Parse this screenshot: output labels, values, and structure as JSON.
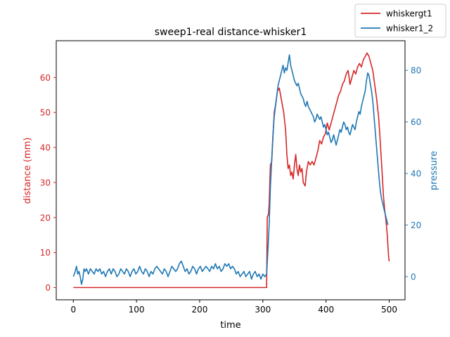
{
  "chart_data": {
    "type": "line",
    "title": "sweep1-real distance-whisker1",
    "xlabel": "time",
    "ylabel_left": "distance (mm)",
    "ylabel_right": "pressure",
    "xlim": [
      -27,
      525
    ],
    "ylim_left": [
      -3.5,
      70.5
    ],
    "ylim_right": [
      -9,
      91.5
    ],
    "xticks": [
      0,
      100,
      200,
      300,
      400,
      500
    ],
    "yticks_left": [
      0,
      10,
      20,
      30,
      40,
      50,
      60
    ],
    "yticks_right": [
      0,
      20,
      40,
      60,
      80
    ],
    "grid": false,
    "legend_position": "top-right",
    "series": [
      {
        "name": "whiskergt1",
        "axis": "left",
        "color": "#d62728",
        "points": [
          [
            0,
            0
          ],
          [
            100,
            0
          ],
          [
            200,
            0
          ],
          [
            306,
            0
          ],
          [
            306,
            0.5
          ],
          [
            307,
            20
          ],
          [
            309,
            21
          ],
          [
            310,
            24
          ],
          [
            312,
            35
          ],
          [
            314,
            36
          ],
          [
            316,
            43
          ],
          [
            318,
            50
          ],
          [
            320,
            52
          ],
          [
            323,
            56
          ],
          [
            326,
            57
          ],
          [
            330,
            53
          ],
          [
            333,
            50
          ],
          [
            336,
            45
          ],
          [
            338,
            38
          ],
          [
            340,
            34
          ],
          [
            342,
            35
          ],
          [
            344,
            32
          ],
          [
            346,
            33
          ],
          [
            348,
            31
          ],
          [
            350,
            35
          ],
          [
            352,
            38
          ],
          [
            354,
            34
          ],
          [
            356,
            32
          ],
          [
            358,
            35
          ],
          [
            360,
            33
          ],
          [
            362,
            34
          ],
          [
            364,
            30
          ],
          [
            367,
            29
          ],
          [
            369,
            33
          ],
          [
            372,
            36
          ],
          [
            375,
            35
          ],
          [
            378,
            36
          ],
          [
            381,
            35
          ],
          [
            384,
            37
          ],
          [
            387,
            39
          ],
          [
            390,
            42
          ],
          [
            393,
            41
          ],
          [
            396,
            43
          ],
          [
            399,
            44
          ],
          [
            402,
            47
          ],
          [
            405,
            45
          ],
          [
            408,
            47
          ],
          [
            411,
            49
          ],
          [
            414,
            51
          ],
          [
            417,
            53
          ],
          [
            420,
            55
          ],
          [
            423,
            56
          ],
          [
            426,
            58
          ],
          [
            429,
            59
          ],
          [
            432,
            61
          ],
          [
            435,
            62
          ],
          [
            438,
            58
          ],
          [
            441,
            60
          ],
          [
            444,
            62
          ],
          [
            447,
            61
          ],
          [
            450,
            63
          ],
          [
            453,
            64
          ],
          [
            456,
            63
          ],
          [
            459,
            65
          ],
          [
            462,
            66
          ],
          [
            465,
            67
          ],
          [
            468,
            66
          ],
          [
            471,
            64
          ],
          [
            474,
            62
          ],
          [
            477,
            58
          ],
          [
            480,
            54
          ],
          [
            483,
            49
          ],
          [
            485,
            44
          ],
          [
            487,
            38
          ],
          [
            489,
            32
          ],
          [
            491,
            26
          ],
          [
            493,
            22
          ],
          [
            495,
            19
          ],
          [
            497,
            15
          ],
          [
            499,
            9
          ],
          [
            500,
            7.5
          ]
        ]
      },
      {
        "name": "whisker1_2",
        "axis": "right",
        "color": "#1f77b4",
        "points": [
          [
            0,
            0
          ],
          [
            3,
            2
          ],
          [
            5,
            4
          ],
          [
            7,
            1
          ],
          [
            9,
            2
          ],
          [
            11,
            0
          ],
          [
            13,
            -3
          ],
          [
            15,
            -1
          ],
          [
            17,
            3
          ],
          [
            19,
            2
          ],
          [
            21,
            3
          ],
          [
            24,
            1
          ],
          [
            27,
            3
          ],
          [
            30,
            2
          ],
          [
            33,
            1
          ],
          [
            36,
            3
          ],
          [
            39,
            2
          ],
          [
            42,
            3
          ],
          [
            45,
            1
          ],
          [
            48,
            2
          ],
          [
            51,
            0
          ],
          [
            54,
            2
          ],
          [
            57,
            3
          ],
          [
            60,
            1
          ],
          [
            63,
            3
          ],
          [
            66,
            2
          ],
          [
            69,
            0
          ],
          [
            72,
            1
          ],
          [
            75,
            3
          ],
          [
            78,
            2
          ],
          [
            81,
            1
          ],
          [
            84,
            3
          ],
          [
            87,
            2
          ],
          [
            90,
            0
          ],
          [
            93,
            2
          ],
          [
            96,
            3
          ],
          [
            99,
            1
          ],
          [
            102,
            2
          ],
          [
            105,
            4
          ],
          [
            108,
            2
          ],
          [
            111,
            1
          ],
          [
            114,
            3
          ],
          [
            117,
            2
          ],
          [
            120,
            0
          ],
          [
            123,
            2
          ],
          [
            126,
            1
          ],
          [
            129,
            3
          ],
          [
            132,
            4
          ],
          [
            135,
            3
          ],
          [
            138,
            2
          ],
          [
            141,
            1
          ],
          [
            144,
            3
          ],
          [
            147,
            2
          ],
          [
            150,
            0
          ],
          [
            153,
            2
          ],
          [
            156,
            4
          ],
          [
            159,
            3
          ],
          [
            162,
            2
          ],
          [
            165,
            3
          ],
          [
            168,
            5
          ],
          [
            171,
            6
          ],
          [
            174,
            4
          ],
          [
            177,
            2
          ],
          [
            180,
            3
          ],
          [
            183,
            1
          ],
          [
            186,
            2
          ],
          [
            189,
            4
          ],
          [
            192,
            3
          ],
          [
            195,
            1
          ],
          [
            198,
            3
          ],
          [
            201,
            4
          ],
          [
            204,
            2
          ],
          [
            207,
            3
          ],
          [
            210,
            4
          ],
          [
            213,
            3
          ],
          [
            216,
            2
          ],
          [
            219,
            4
          ],
          [
            222,
            3
          ],
          [
            225,
            5
          ],
          [
            228,
            3
          ],
          [
            231,
            4
          ],
          [
            234,
            2
          ],
          [
            237,
            3
          ],
          [
            240,
            5
          ],
          [
            243,
            4
          ],
          [
            246,
            5
          ],
          [
            249,
            3
          ],
          [
            252,
            4
          ],
          [
            255,
            3
          ],
          [
            258,
            1
          ],
          [
            261,
            2
          ],
          [
            264,
            0
          ],
          [
            267,
            1
          ],
          [
            270,
            2
          ],
          [
            273,
            0
          ],
          [
            276,
            1
          ],
          [
            279,
            2
          ],
          [
            282,
            -1
          ],
          [
            285,
            1
          ],
          [
            288,
            2
          ],
          [
            291,
            0
          ],
          [
            294,
            1
          ],
          [
            297,
            -1
          ],
          [
            300,
            1
          ],
          [
            303,
            0
          ],
          [
            306,
            1
          ],
          [
            308,
            10
          ],
          [
            310,
            20
          ],
          [
            312,
            35
          ],
          [
            314,
            45
          ],
          [
            316,
            55
          ],
          [
            318,
            62
          ],
          [
            320,
            66
          ],
          [
            322,
            70
          ],
          [
            324,
            74
          ],
          [
            326,
            76
          ],
          [
            328,
            78
          ],
          [
            330,
            80
          ],
          [
            332,
            82
          ],
          [
            334,
            79
          ],
          [
            336,
            81
          ],
          [
            338,
            80
          ],
          [
            340,
            83
          ],
          [
            342,
            86
          ],
          [
            344,
            82
          ],
          [
            346,
            80
          ],
          [
            348,
            78
          ],
          [
            350,
            76
          ],
          [
            352,
            75
          ],
          [
            354,
            74
          ],
          [
            356,
            75
          ],
          [
            358,
            73
          ],
          [
            360,
            71
          ],
          [
            362,
            70
          ],
          [
            364,
            69
          ],
          [
            366,
            67
          ],
          [
            368,
            66
          ],
          [
            370,
            68
          ],
          [
            372,
            66
          ],
          [
            374,
            65
          ],
          [
            376,
            64
          ],
          [
            378,
            63
          ],
          [
            380,
            62
          ],
          [
            382,
            60
          ],
          [
            384,
            61
          ],
          [
            386,
            63
          ],
          [
            388,
            62
          ],
          [
            390,
            61
          ],
          [
            392,
            62
          ],
          [
            394,
            60
          ],
          [
            396,
            58
          ],
          [
            398,
            59
          ],
          [
            400,
            57
          ],
          [
            402,
            55
          ],
          [
            404,
            56
          ],
          [
            406,
            54
          ],
          [
            408,
            52
          ],
          [
            410,
            53
          ],
          [
            412,
            55
          ],
          [
            414,
            53
          ],
          [
            416,
            51
          ],
          [
            418,
            53
          ],
          [
            420,
            55
          ],
          [
            422,
            57
          ],
          [
            424,
            56
          ],
          [
            426,
            58
          ],
          [
            428,
            60
          ],
          [
            430,
            59
          ],
          [
            432,
            57
          ],
          [
            434,
            58
          ],
          [
            436,
            56
          ],
          [
            438,
            55
          ],
          [
            440,
            57
          ],
          [
            442,
            59
          ],
          [
            444,
            58
          ],
          [
            446,
            57
          ],
          [
            448,
            60
          ],
          [
            450,
            62
          ],
          [
            452,
            64
          ],
          [
            454,
            63
          ],
          [
            456,
            66
          ],
          [
            458,
            68
          ],
          [
            460,
            70
          ],
          [
            462,
            72
          ],
          [
            464,
            76
          ],
          [
            466,
            79
          ],
          [
            468,
            78
          ],
          [
            470,
            75
          ],
          [
            472,
            72
          ],
          [
            474,
            68
          ],
          [
            476,
            62
          ],
          [
            478,
            56
          ],
          [
            480,
            50
          ],
          [
            482,
            44
          ],
          [
            484,
            38
          ],
          [
            486,
            33
          ],
          [
            488,
            30
          ],
          [
            490,
            28
          ],
          [
            492,
            26
          ],
          [
            494,
            24
          ],
          [
            496,
            22
          ],
          [
            498,
            20
          ]
        ]
      }
    ]
  }
}
